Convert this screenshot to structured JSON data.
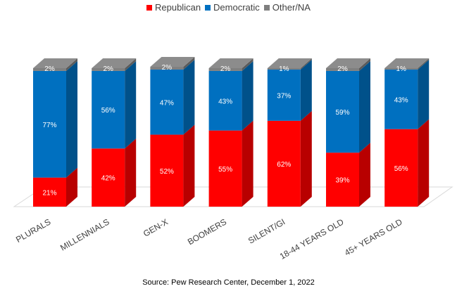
{
  "chart_data": {
    "type": "bar",
    "stacked": true,
    "style": "3d",
    "categories": [
      "PLURALS",
      "MILLENNIALS",
      "GEN-X",
      "BOOMERS",
      "SILENT/GI",
      "18-44 YEARS OLD",
      "45+ YEARS OLD"
    ],
    "series": [
      {
        "name": "Republican",
        "color": "#ff0000",
        "values": [
          21,
          42,
          52,
          55,
          62,
          39,
          56
        ]
      },
      {
        "name": "Democratic",
        "color": "#0070c0",
        "values": [
          77,
          56,
          47,
          43,
          37,
          59,
          43
        ]
      },
      {
        "name": "Other/NA",
        "color": "#7f7f7f",
        "values": [
          2,
          2,
          2,
          2,
          1,
          2,
          1
        ]
      }
    ],
    "value_suffix": "%",
    "ylim": [
      0,
      100
    ],
    "legend_position": "top",
    "grid": false
  },
  "source": "Source: Pew Research Center, December 1, 2022"
}
